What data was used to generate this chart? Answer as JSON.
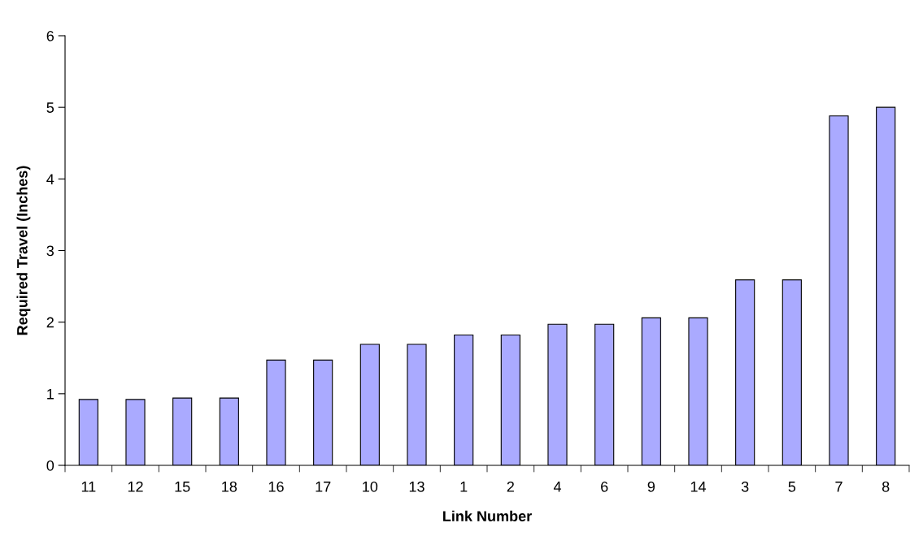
{
  "chart_data": {
    "type": "bar",
    "xlabel": "Link Number",
    "ylabel": "Required Travel (Inches)",
    "categories": [
      "11",
      "12",
      "15",
      "18",
      "16",
      "17",
      "10",
      "13",
      "1",
      "2",
      "4",
      "6",
      "9",
      "14",
      "3",
      "5",
      "7",
      "8"
    ],
    "values": [
      0.92,
      0.92,
      0.94,
      0.94,
      1.47,
      1.47,
      1.69,
      1.69,
      1.82,
      1.82,
      1.97,
      1.97,
      2.06,
      2.06,
      2.59,
      2.59,
      4.88,
      5.0
    ],
    "color": "#aaaaff",
    "ylim": [
      0,
      6
    ],
    "yticks": [
      0,
      1,
      2,
      3,
      4,
      5,
      6
    ],
    "grid": false,
    "legend": false
  }
}
